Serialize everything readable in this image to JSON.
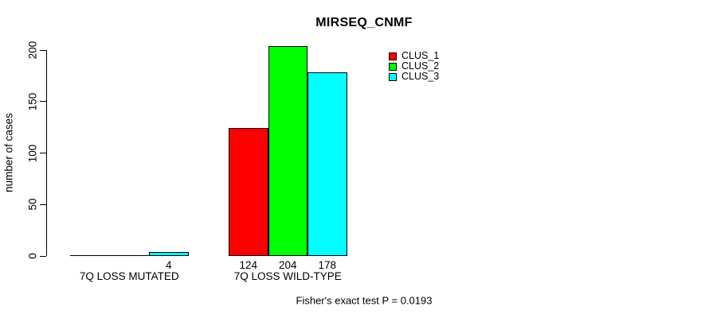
{
  "title": "MIRSEQ_CNMF",
  "y_axis": {
    "label": "number of cases",
    "ticks": [
      "0",
      "50",
      "100",
      "150",
      "200"
    ]
  },
  "legend": {
    "items": [
      {
        "label": "CLUS_1",
        "color": "#ff0000"
      },
      {
        "label": "CLUS_2",
        "color": "#00ff00"
      },
      {
        "label": "CLUS_3",
        "color": "#00ffff"
      }
    ]
  },
  "caption": "Fisher's exact test P = 0.0193",
  "chart_data": {
    "type": "bar",
    "title": "MIRSEQ_CNMF",
    "categories": [
      "7Q LOSS MUTATED",
      "7Q LOSS WILD-TYPE"
    ],
    "series": [
      {
        "name": "CLUS_1",
        "color": "#ff0000",
        "values": [
          0,
          124
        ]
      },
      {
        "name": "CLUS_2",
        "color": "#00ff00",
        "values": [
          0,
          204
        ]
      },
      {
        "name": "CLUS_3",
        "color": "#00ffff",
        "values": [
          4,
          178
        ]
      }
    ],
    "bar_value_labels": [
      [
        "",
        "",
        "4"
      ],
      [
        "124",
        "204",
        "178"
      ]
    ],
    "xlabel": "",
    "ylabel": "number of cases",
    "yticks": [
      0,
      50,
      100,
      150,
      200
    ],
    "ylim": [
      0,
      204
    ],
    "grid": false,
    "legend_position": "top-right",
    "annotation": "Fisher's exact test P = 0.0193"
  }
}
